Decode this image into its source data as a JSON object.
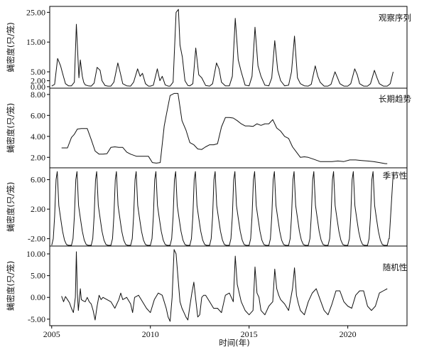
{
  "chart_data": {
    "type": "line",
    "xlabel": "时间(年)",
    "xlim": [
      2004.9,
      2023.0
    ],
    "xticks": [
      2005,
      2010,
      2015,
      2020
    ],
    "panels": [
      {
        "id": "observed",
        "label": "观察序列",
        "ylabel": "蝇密度(只/笼)",
        "ylim": [
          -0.5,
          27.0
        ],
        "yticks": [
          0.0,
          2.0,
          5.0,
          15.0,
          25.0
        ],
        "ytick_labels": [
          "0.00",
          "2.00",
          "5.00",
          "15.00",
          "25.00"
        ],
        "series": [
          {
            "x": [
              2005.0,
              2005.15,
              2005.3,
              2005.45,
              2005.55,
              2005.7,
              2005.85,
              2006.0,
              2006.15,
              2006.25,
              2006.38,
              2006.45,
              2006.55,
              2006.62,
              2006.7,
              2006.85,
              2007.0,
              2007.15,
              2007.3,
              2007.45,
              2007.55,
              2007.7,
              2007.85,
              2008.0,
              2008.15,
              2008.35,
              2008.48,
              2008.6,
              2008.8,
              2009.0,
              2009.15,
              2009.35,
              2009.48,
              2009.6,
              2009.75,
              2009.9,
              2010.0,
              2010.15,
              2010.35,
              2010.48,
              2010.6,
              2010.75,
              2010.9,
              2011.0,
              2011.15,
              2011.3,
              2011.42,
              2011.5,
              2011.62,
              2011.75,
              2011.9,
              2012.0,
              2012.15,
              2012.3,
              2012.45,
              2012.6,
              2012.8,
              2013.0,
              2013.15,
              2013.35,
              2013.48,
              2013.6,
              2013.8,
              2014.0,
              2014.15,
              2014.3,
              2014.45,
              2014.6,
              2014.8,
              2015.0,
              2015.15,
              2015.3,
              2015.45,
              2015.6,
              2015.8,
              2016.0,
              2016.15,
              2016.3,
              2016.45,
              2016.6,
              2016.8,
              2017.0,
              2017.15,
              2017.3,
              2017.45,
              2017.6,
              2017.8,
              2018.0,
              2018.15,
              2018.35,
              2018.48,
              2018.6,
              2018.8,
              2019.0,
              2019.15,
              2019.35,
              2019.48,
              2019.6,
              2019.8,
              2020.0,
              2020.15,
              2020.35,
              2020.48,
              2020.6,
              2020.8,
              2021.0,
              2021.15,
              2021.35,
              2021.48,
              2021.6,
              2021.8,
              2022.0,
              2022.15,
              2022.3
            ],
            "y": [
              0.2,
              0.8,
              9.5,
              7.0,
              4.5,
              1.0,
              0.3,
              0.3,
              1.5,
              21.0,
              3.0,
              9.0,
              3.5,
              1.5,
              0.6,
              0.3,
              0.2,
              1.2,
              6.5,
              5.5,
              2.0,
              0.4,
              0.2,
              0.2,
              1.5,
              8.0,
              4.5,
              1.0,
              0.3,
              0.2,
              1.5,
              6.0,
              3.5,
              4.5,
              1.0,
              0.2,
              0.2,
              0.5,
              6.0,
              2.0,
              3.5,
              0.6,
              0.2,
              0.2,
              1.5,
              25.0,
              26.0,
              14.0,
              10.0,
              2.0,
              0.4,
              0.3,
              1.0,
              13.0,
              4.0,
              3.0,
              0.4,
              0.2,
              1.0,
              8.0,
              6.0,
              1.5,
              0.3,
              0.3,
              3.5,
              23.0,
              9.0,
              5.0,
              0.5,
              0.3,
              3.5,
              20.0,
              7.0,
              3.5,
              0.5,
              0.3,
              3.0,
              15.5,
              5.5,
              2.0,
              0.3,
              0.5,
              5.0,
              17.0,
              3.0,
              1.0,
              0.3,
              0.2,
              0.8,
              7.0,
              3.5,
              1.5,
              0.2,
              0.2,
              0.8,
              5.0,
              3.0,
              1.0,
              0.2,
              0.2,
              1.0,
              6.0,
              4.0,
              1.0,
              0.2,
              0.2,
              1.0,
              5.5,
              3.0,
              1.0,
              0.2,
              0.2,
              1.0,
              5.0
            ]
          }
        ]
      },
      {
        "id": "trend",
        "label": "长期趋势",
        "ylabel": "蝇密度(只/笼)",
        "ylim": [
          1.0,
          8.6
        ],
        "yticks": [
          2.0,
          4.0,
          6.0,
          8.0
        ],
        "ytick_labels": [
          "2.00",
          "4.00",
          "6.00",
          "8.00"
        ],
        "series": [
          {
            "x": [
              2005.5,
              2005.8,
              2006.0,
              2006.15,
              2006.3,
              2006.5,
              2006.8,
              2007.0,
              2007.2,
              2007.4,
              2007.6,
              2007.8,
              2008.0,
              2008.2,
              2008.4,
              2008.6,
              2008.8,
              2009.0,
              2009.3,
              2009.6,
              2009.9,
              2010.1,
              2010.3,
              2010.5,
              2010.7,
              2010.8,
              2011.0,
              2011.2,
              2011.4,
              2011.6,
              2011.8,
              2012.0,
              2012.2,
              2012.4,
              2012.6,
              2012.8,
              2013.0,
              2013.2,
              2013.4,
              2013.6,
              2013.8,
              2014.0,
              2014.2,
              2014.4,
              2014.6,
              2014.8,
              2015.0,
              2015.2,
              2015.4,
              2015.6,
              2015.8,
              2016.0,
              2016.2,
              2016.4,
              2016.6,
              2016.8,
              2017.0,
              2017.2,
              2017.4,
              2017.6,
              2017.8,
              2018.0,
              2018.3,
              2018.6,
              2018.9,
              2019.2,
              2019.5,
              2019.8,
              2020.1,
              2020.4,
              2020.7,
              2021.0,
              2021.3,
              2021.6,
              2021.9,
              2022.0
            ],
            "y": [
              2.9,
              2.9,
              3.9,
              4.2,
              4.7,
              4.75,
              4.75,
              3.7,
              2.6,
              2.3,
              2.3,
              2.35,
              2.95,
              3.0,
              2.95,
              2.95,
              2.5,
              2.3,
              2.1,
              2.1,
              2.1,
              1.5,
              1.45,
              1.5,
              5.0,
              6.0,
              7.9,
              8.1,
              8.1,
              5.5,
              4.6,
              3.4,
              3.2,
              2.8,
              2.75,
              3.0,
              3.2,
              3.2,
              3.3,
              4.9,
              5.8,
              5.8,
              5.75,
              5.5,
              5.2,
              5.0,
              5.0,
              4.95,
              5.2,
              5.05,
              5.2,
              5.2,
              5.6,
              4.8,
              4.5,
              4.0,
              3.8,
              3.0,
              2.5,
              2.0,
              2.05,
              2.0,
              1.8,
              1.6,
              1.6,
              1.6,
              1.65,
              1.6,
              1.75,
              1.75,
              1.7,
              1.65,
              1.6,
              1.5,
              1.4,
              1.4
            ]
          }
        ]
      },
      {
        "id": "seasonal",
        "label": "季节性",
        "ylabel": "蝇密度(只/笼)",
        "ylim": [
          -3.0,
          7.6
        ],
        "yticks": [
          -2.0,
          2.0,
          6.0
        ],
        "ytick_labels": [
          "-2.00",
          "2.00",
          "6.00"
        ],
        "period": 1.0,
        "cycle": {
          "phase": [
            0.0,
            0.08,
            0.15,
            0.22,
            0.28,
            0.36,
            0.45,
            0.55,
            0.65,
            0.75,
            0.85,
            0.95
          ],
          "y": [
            -2.9,
            -2.0,
            1.0,
            6.0,
            7.1,
            2.5,
            0.8,
            -1.0,
            -2.2,
            -2.8,
            -2.9,
            -2.9
          ]
        },
        "x_start": 2005.0,
        "x_end": 2022.3,
        "end_rise": {
          "x": [
            2022.1,
            2022.3
          ],
          "y": [
            -2.0,
            6.8
          ]
        }
      },
      {
        "id": "random",
        "label": "随机性",
        "ylabel": "蝇密度(只/笼)",
        "ylim": [
          -6.5,
          11.8
        ],
        "yticks": [
          -5.0,
          0.0,
          5.0,
          10.0
        ],
        "ytick_labels": [
          "-5.00",
          "0.00",
          "5.00",
          "10.00"
        ],
        "series": [
          {
            "x": [
              2005.5,
              2005.6,
              2005.7,
              2005.8,
              2005.9,
              2006.0,
              2006.1,
              2006.2,
              2006.25,
              2006.3,
              2006.35,
              2006.45,
              2006.5,
              2006.6,
              2006.7,
              2006.8,
              2006.9,
              2007.0,
              2007.1,
              2007.2,
              2007.3,
              2007.4,
              2007.5,
              2007.6,
              2007.8,
              2008.0,
              2008.2,
              2008.4,
              2008.5,
              2008.6,
              2008.8,
              2009.0,
              2009.1,
              2009.2,
              2009.4,
              2009.6,
              2009.8,
              2010.0,
              2010.2,
              2010.4,
              2010.6,
              2010.8,
              2010.9,
              2011.0,
              2011.1,
              2011.2,
              2011.3,
              2011.4,
              2011.5,
              2011.6,
              2011.7,
              2011.8,
              2011.9,
              2012.0,
              2012.1,
              2012.2,
              2012.3,
              2012.4,
              2012.5,
              2012.6,
              2012.7,
              2012.8,
              2013.0,
              2013.2,
              2013.4,
              2013.6,
              2013.8,
              2014.0,
              2014.2,
              2014.3,
              2014.4,
              2014.5,
              2014.6,
              2014.8,
              2015.0,
              2015.2,
              2015.3,
              2015.4,
              2015.5,
              2015.6,
              2015.8,
              2016.0,
              2016.2,
              2016.3,
              2016.4,
              2016.5,
              2016.6,
              2016.8,
              2017.0,
              2017.2,
              2017.3,
              2017.4,
              2017.5,
              2017.6,
              2017.8,
              2018.0,
              2018.2,
              2018.4,
              2018.6,
              2018.8,
              2019.0,
              2019.2,
              2019.4,
              2019.6,
              2019.8,
              2020.0,
              2020.2,
              2020.4,
              2020.6,
              2020.8,
              2021.0,
              2021.2,
              2021.4,
              2021.6,
              2021.8,
              2022.0
            ],
            "y": [
              0.3,
              -1.0,
              0.2,
              -0.5,
              -1.2,
              -2.5,
              -3.5,
              0.0,
              10.5,
              1.0,
              -3.0,
              2.0,
              -0.5,
              -0.8,
              -1.0,
              0.0,
              -1.0,
              -1.5,
              -3.0,
              -5.2,
              -2.0,
              0.5,
              -0.5,
              0.0,
              -0.5,
              -1.0,
              -2.5,
              -0.5,
              1.0,
              -0.5,
              0.0,
              -1.5,
              -3.5,
              0.0,
              0.5,
              -1.0,
              -2.5,
              -3.5,
              -0.5,
              1.0,
              0.5,
              -2.5,
              -4.5,
              -5.5,
              0.0,
              11.0,
              10.0,
              4.5,
              -1.0,
              -2.5,
              -3.5,
              -4.5,
              -5.2,
              -2.0,
              1.0,
              3.5,
              -0.5,
              -4.5,
              -4.0,
              0.0,
              0.5,
              0.5,
              -1.0,
              -2.5,
              -2.5,
              -3.5,
              0.5,
              1.0,
              -1.0,
              9.5,
              3.0,
              1.0,
              -1.0,
              -3.0,
              -4.0,
              -3.0,
              7.0,
              1.0,
              0.0,
              -3.0,
              -4.0,
              -2.0,
              -1.0,
              6.5,
              2.0,
              0.5,
              -0.5,
              -1.5,
              -3.0,
              2.0,
              6.8,
              0.5,
              -1.5,
              -3.0,
              -4.0,
              -1.0,
              1.0,
              2.0,
              -0.5,
              -3.0,
              -4.0,
              -1.5,
              1.5,
              1.5,
              -1.0,
              -2.0,
              -2.5,
              0.5,
              1.5,
              1.5,
              -2.0,
              -3.0,
              -2.0,
              1.0,
              1.5,
              2.0
            ]
          }
        ]
      }
    ]
  }
}
